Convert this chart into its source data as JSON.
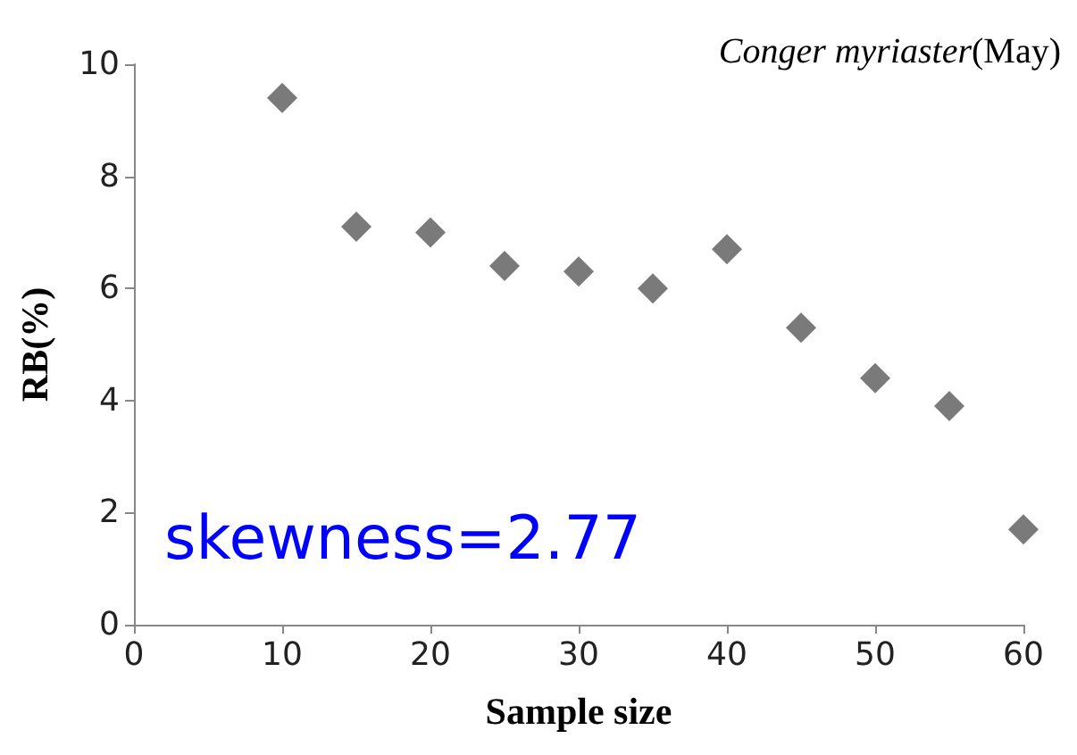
{
  "chart_data": {
    "type": "scatter",
    "title": "Conger myriaster(May)",
    "xlabel": "Sample size",
    "ylabel": "RB(%)",
    "annotations": [
      "skewness=2.77"
    ],
    "x": [
      10,
      15,
      20,
      25,
      30,
      35,
      40,
      45,
      50,
      55,
      60
    ],
    "series": [
      {
        "color": "#595959",
        "values": [
          9.4,
          7.1,
          7.0,
          6.4,
          6.3,
          6.0,
          6.7,
          5.3,
          4.4,
          3.9,
          1.7
        ]
      }
    ],
    "xlim": [
      0,
      60
    ],
    "xticks": [
      0,
      10,
      20,
      30,
      40,
      50,
      60
    ],
    "ylim": [
      0,
      10
    ],
    "yticks": [
      0,
      2,
      4,
      6,
      8,
      10
    ],
    "marker": "diamond"
  }
}
